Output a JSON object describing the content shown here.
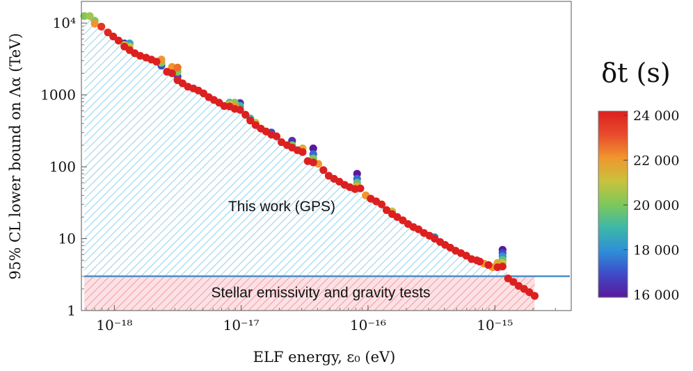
{
  "chart_data": {
    "type": "scatter",
    "title": "",
    "xlabel": "ELF energy, ε₀ (eV)",
    "ylabel": "95% CL lower bound on Λα (TeV)",
    "xscale": "log",
    "yscale": "log",
    "xlim": [
      5.5e-19,
      4e-15
    ],
    "ylim": [
      1,
      20000
    ],
    "xticks": [
      {
        "value": 1e-18,
        "label": "10⁻¹⁸"
      },
      {
        "value": 1e-17,
        "label": "10⁻¹⁷"
      },
      {
        "value": 1e-16,
        "label": "10⁻¹⁶"
      },
      {
        "value": 1e-15,
        "label": "10⁻¹⁵"
      }
    ],
    "yticks": [
      {
        "value": 1,
        "label": "1"
      },
      {
        "value": 10,
        "label": "10"
      },
      {
        "value": 100,
        "label": "100"
      },
      {
        "value": 1000,
        "label": "1000"
      },
      {
        "value": 10000,
        "label": "10⁴"
      }
    ],
    "annotations": {
      "this_work": "This work (GPS)",
      "stellar": "Stellar emissivity and gravity tests"
    },
    "stellar_bound": 3.0,
    "colorbar": {
      "title": "δt (s)",
      "range": [
        16000,
        24000
      ],
      "ticks": [
        {
          "value": 16000,
          "label": "16 000"
        },
        {
          "value": 18000,
          "label": "18 000"
        },
        {
          "value": 20000,
          "label": "20 000"
        },
        {
          "value": 22000,
          "label": "22 000"
        },
        {
          "value": 24000,
          "label": "24 000"
        }
      ],
      "colors": [
        "#5b189c",
        "#3e4bc8",
        "#2f8fd8",
        "#3db8a8",
        "#7ec85a",
        "#c9c23c",
        "#f0962e",
        "#e84b2c",
        "#dc2020"
      ]
    },
    "point_groups": [
      {
        "x": 5.8e-19,
        "y": [
          12500
        ],
        "dt": [
          20000
        ]
      },
      {
        "x": 6.4e-19,
        "y": [
          12500
        ],
        "dt": [
          20500
        ]
      },
      {
        "x": 7e-19,
        "y": [
          10800,
          9800
        ],
        "dt": [
          20000,
          22000
        ]
      },
      {
        "x": 7.9e-19,
        "y": [
          8900
        ],
        "dt": [
          23500
        ]
      },
      {
        "x": 8.9e-19,
        "y": [
          7400
        ],
        "dt": [
          23800
        ]
      },
      {
        "x": 9.8e-19,
        "y": [
          6500
        ],
        "dt": [
          24000
        ]
      },
      {
        "x": 1.08e-18,
        "y": [
          5700
        ],
        "dt": [
          24000
        ]
      },
      {
        "x": 1.2e-18,
        "y": [
          5200,
          4950,
          4700
        ],
        "dt": [
          16500,
          21000,
          24000
        ]
      },
      {
        "x": 1.32e-18,
        "y": [
          5200,
          4700,
          4200
        ],
        "dt": [
          18500,
          21000,
          24000
        ]
      },
      {
        "x": 1.45e-18,
        "y": [
          3800
        ],
        "dt": [
          24000
        ]
      },
      {
        "x": 1.6e-18,
        "y": [
          3500
        ],
        "dt": [
          24000
        ]
      },
      {
        "x": 1.78e-18,
        "y": [
          3300
        ],
        "dt": [
          24000
        ]
      },
      {
        "x": 1.96e-18,
        "y": [
          3100
        ],
        "dt": [
          24000
        ]
      },
      {
        "x": 2.15e-18,
        "y": [
          2900
        ],
        "dt": [
          24000
        ]
      },
      {
        "x": 2.35e-18,
        "y": [
          3100,
          2800,
          2550
        ],
        "dt": [
          22000,
          20000,
          17000
        ]
      },
      {
        "x": 2.6e-18,
        "y": [
          2100
        ],
        "dt": [
          24000
        ]
      },
      {
        "x": 2.85e-18,
        "y": [
          2450,
          2200,
          2000
        ],
        "dt": [
          22000,
          20000,
          24000
        ]
      },
      {
        "x": 3.15e-18,
        "y": [
          2400,
          2100,
          1800,
          1600
        ],
        "dt": [
          22500,
          20000,
          17000,
          24000
        ]
      },
      {
        "x": 3.45e-18,
        "y": [
          1450
        ],
        "dt": [
          24000
        ]
      },
      {
        "x": 3.8e-18,
        "y": [
          1300
        ],
        "dt": [
          24000
        ]
      },
      {
        "x": 4.2e-18,
        "y": [
          1230
        ],
        "dt": [
          24000
        ]
      },
      {
        "x": 4.6e-18,
        "y": [
          1150
        ],
        "dt": [
          24000
        ]
      },
      {
        "x": 5.05e-18,
        "y": [
          1050
        ],
        "dt": [
          24000
        ]
      },
      {
        "x": 5.55e-18,
        "y": [
          930
        ],
        "dt": [
          24000
        ]
      },
      {
        "x": 6.1e-18,
        "y": [
          850
        ],
        "dt": [
          24000
        ]
      },
      {
        "x": 6.7e-18,
        "y": [
          780
        ],
        "dt": [
          24000
        ]
      },
      {
        "x": 7.35e-18,
        "y": [
          700
        ],
        "dt": [
          24000
        ]
      },
      {
        "x": 8.1e-18,
        "y": [
          780,
          740,
          690
        ],
        "dt": [
          19000,
          21000,
          24000
        ]
      },
      {
        "x": 8.9e-18,
        "y": [
          780,
          700,
          640
        ],
        "dt": [
          20000,
          22000,
          24000
        ]
      },
      {
        "x": 9.8e-18,
        "y": [
          770,
          700,
          620
        ],
        "dt": [
          16500,
          19000,
          24000
        ]
      },
      {
        "x": 1.08e-17,
        "y": [
          530
        ],
        "dt": [
          24000
        ]
      },
      {
        "x": 1.18e-17,
        "y": [
          470,
          440
        ],
        "dt": [
          19000,
          24000
        ]
      },
      {
        "x": 1.3e-17,
        "y": [
          410,
          380
        ],
        "dt": [
          21000,
          24000
        ]
      },
      {
        "x": 1.43e-17,
        "y": [
          340
        ],
        "dt": [
          24000
        ]
      },
      {
        "x": 1.57e-17,
        "y": [
          310
        ],
        "dt": [
          24000
        ]
      },
      {
        "x": 1.73e-17,
        "y": [
          300,
          280
        ],
        "dt": [
          17000,
          24000
        ]
      },
      {
        "x": 1.9e-17,
        "y": [
          265
        ],
        "dt": [
          24000
        ]
      },
      {
        "x": 2.08e-17,
        "y": [
          220
        ],
        "dt": [
          24000
        ]
      },
      {
        "x": 2.3e-17,
        "y": [
          200
        ],
        "dt": [
          24000
        ]
      },
      {
        "x": 2.52e-17,
        "y": [
          230,
          200,
          185
        ],
        "dt": [
          16500,
          20000,
          24000
        ]
      },
      {
        "x": 2.78e-17,
        "y": [
          170
        ],
        "dt": [
          24000
        ]
      },
      {
        "x": 3.05e-17,
        "y": [
          180,
          160
        ],
        "dt": [
          21500,
          24000
        ]
      },
      {
        "x": 3.35e-17,
        "y": [
          120
        ],
        "dt": [
          24000
        ]
      },
      {
        "x": 3.7e-17,
        "y": [
          180,
          150,
          130,
          115
        ],
        "dt": [
          16000,
          17500,
          20000,
          24000
        ]
      },
      {
        "x": 4.05e-17,
        "y": [
          110
        ],
        "dt": [
          22000
        ]
      },
      {
        "x": 4.45e-17,
        "y": [
          90
        ],
        "dt": [
          24000
        ]
      },
      {
        "x": 4.9e-17,
        "y": [
          75
        ],
        "dt": [
          24000
        ]
      },
      {
        "x": 5.4e-17,
        "y": [
          68
        ],
        "dt": [
          24000
        ]
      },
      {
        "x": 5.95e-17,
        "y": [
          62
        ],
        "dt": [
          24000
        ]
      },
      {
        "x": 6.55e-17,
        "y": [
          56
        ],
        "dt": [
          24000
        ]
      },
      {
        "x": 7.2e-17,
        "y": [
          52
        ],
        "dt": [
          24000
        ]
      },
      {
        "x": 7.9e-17,
        "y": [
          49
        ],
        "dt": [
          24000
        ]
      },
      {
        "x": 8.2e-17,
        "y": [
          80,
          68,
          60,
          54
        ],
        "dt": [
          16000,
          17500,
          19500,
          21500
        ]
      },
      {
        "x": 8.7e-17,
        "y": [
          50
        ],
        "dt": [
          24000
        ]
      },
      {
        "x": 9.6e-17,
        "y": [
          40
        ],
        "dt": [
          22000
        ]
      },
      {
        "x": 1.05e-16,
        "y": [
          36
        ],
        "dt": [
          24000
        ]
      },
      {
        "x": 1.16e-16,
        "y": [
          33
        ],
        "dt": [
          24000
        ]
      },
      {
        "x": 1.28e-16,
        "y": [
          30
        ],
        "dt": [
          24000
        ]
      },
      {
        "x": 1.4e-16,
        "y": [
          25
        ],
        "dt": [
          24000
        ]
      },
      {
        "x": 1.55e-16,
        "y": [
          24,
          22
        ],
        "dt": [
          21000,
          24000
        ]
      },
      {
        "x": 1.7e-16,
        "y": [
          20
        ],
        "dt": [
          24000
        ]
      },
      {
        "x": 1.88e-16,
        "y": [
          18
        ],
        "dt": [
          24000
        ]
      },
      {
        "x": 2.07e-16,
        "y": [
          16
        ],
        "dt": [
          24000
        ]
      },
      {
        "x": 2.28e-16,
        "y": [
          14.5
        ],
        "dt": [
          24000
        ]
      },
      {
        "x": 2.5e-16,
        "y": [
          13.5
        ],
        "dt": [
          24000
        ]
      },
      {
        "x": 2.76e-16,
        "y": [
          12
        ],
        "dt": [
          24000
        ]
      },
      {
        "x": 3.05e-16,
        "y": [
          11
        ],
        "dt": [
          24000
        ]
      },
      {
        "x": 3.35e-16,
        "y": [
          10.5,
          10
        ],
        "dt": [
          18000,
          24000
        ]
      },
      {
        "x": 3.7e-16,
        "y": [
          9
        ],
        "dt": [
          24000
        ]
      },
      {
        "x": 4.05e-16,
        "y": [
          8.2
        ],
        "dt": [
          24000
        ]
      },
      {
        "x": 4.45e-16,
        "y": [
          7.5
        ],
        "dt": [
          24000
        ]
      },
      {
        "x": 4.9e-16,
        "y": [
          6.8
        ],
        "dt": [
          24000
        ]
      },
      {
        "x": 5.4e-16,
        "y": [
          6.3
        ],
        "dt": [
          24000
        ]
      },
      {
        "x": 5.95e-16,
        "y": [
          5.8
        ],
        "dt": [
          24000
        ]
      },
      {
        "x": 6.55e-16,
        "y": [
          5.2
        ],
        "dt": [
          24000
        ]
      },
      {
        "x": 7.2e-16,
        "y": [
          5.0
        ],
        "dt": [
          24000
        ]
      },
      {
        "x": 7.6e-16,
        "y": [
          4.8
        ],
        "dt": [
          24000
        ]
      },
      {
        "x": 8.2e-16,
        "y": [
          4.5
        ],
        "dt": [
          22000
        ]
      },
      {
        "x": 8.9e-16,
        "y": [
          4.3
        ],
        "dt": [
          24000
        ]
      },
      {
        "x": 9.6e-16,
        "y": [
          4.0
        ],
        "dt": [
          22000
        ]
      },
      {
        "x": 1.05e-15,
        "y": [
          4.6,
          4.3,
          4.0
        ],
        "dt": [
          21500,
          20000,
          24000
        ]
      },
      {
        "x": 1.15e-15,
        "y": [
          7.0,
          6.3,
          5.7,
          5.1,
          4.6,
          4.1
        ],
        "dt": [
          16000,
          17000,
          18000,
          19500,
          21000,
          24000
        ]
      },
      {
        "x": 1.27e-15,
        "y": [
          2.8
        ],
        "dt": [
          24000
        ]
      },
      {
        "x": 1.4e-15,
        "y": [
          2.5
        ],
        "dt": [
          24000
        ]
      },
      {
        "x": 1.54e-15,
        "y": [
          2.2
        ],
        "dt": [
          24000
        ]
      },
      {
        "x": 1.7e-15,
        "y": [
          2.0
        ],
        "dt": [
          24000
        ]
      },
      {
        "x": 1.87e-15,
        "y": [
          1.8
        ],
        "dt": [
          24000
        ]
      },
      {
        "x": 2.06e-15,
        "y": [
          1.6
        ],
        "dt": [
          24000
        ]
      }
    ]
  }
}
